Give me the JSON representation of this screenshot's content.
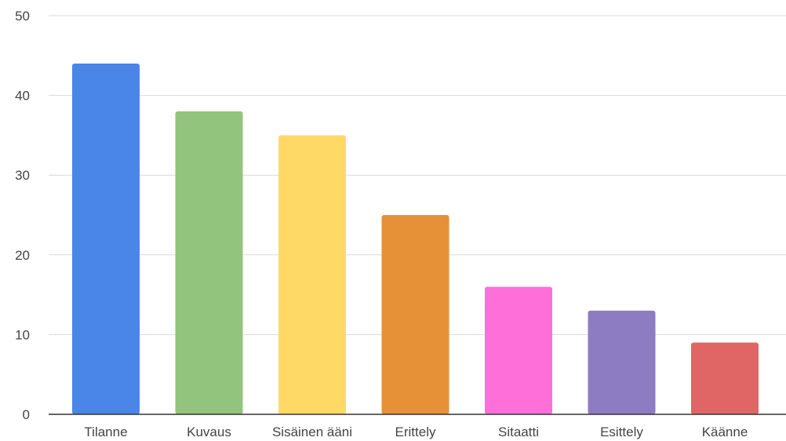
{
  "chart_data": {
    "type": "bar",
    "title": "",
    "xlabel": "",
    "ylabel": "",
    "categories": [
      "Tilanne",
      "Kuvaus",
      "Sisäinen ääni",
      "Erittely",
      "Sitaatti",
      "Esittely",
      "Käänne"
    ],
    "values": [
      44,
      38,
      35,
      25,
      16,
      13,
      9
    ],
    "colors": [
      "#4a86e8",
      "#93c47d",
      "#ffd966",
      "#e69138",
      "#ff6fd9",
      "#8e7cc3",
      "#e06666"
    ],
    "ylim": [
      0,
      50
    ],
    "yticks": [
      0,
      10,
      20,
      30,
      40,
      50
    ],
    "grid": true,
    "legend": "none"
  }
}
